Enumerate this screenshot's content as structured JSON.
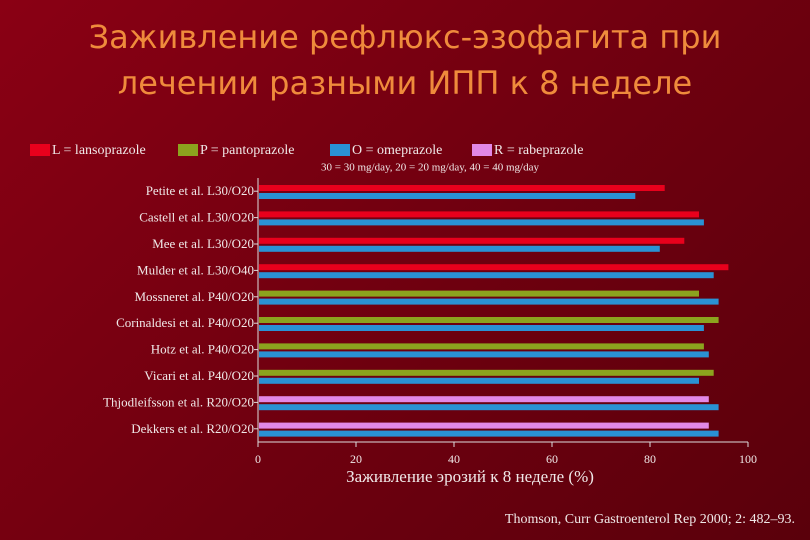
{
  "chart_data": {
    "type": "bar",
    "orientation": "horizontal",
    "title": "Заживление рефлюкс-эзофагита при\nлечении разными ИПП к 8 неделе",
    "subtitle": "30 = 30 mg/day, 20 = 20 mg/day, 40 = 40 mg/day",
    "x_label": "Заживление эрозий к 8 неделе (%)",
    "source": "Thomson, Curr Gastroenterol Rep 2000; 2: 482–93.",
    "categories": [
      "Petite et al. L30/O20",
      "Castell et al. L30/O20",
      "Mee et al. L30/O20",
      "Mulder et al. L30/O40",
      "Mossneret al. P40/O20",
      "Corinaldesi et al. P40/O20",
      "Hotz et al. P40/O20",
      "Vicari et al. P40/O20",
      "Thjodleifsson et al. R20/O20",
      "Dekkers et al. R20/O20"
    ],
    "series": [
      {
        "name": "L = lansoprazole",
        "color": "#e8001c",
        "values": [
          83,
          90,
          87,
          96,
          null,
          null,
          null,
          null,
          null,
          null
        ]
      },
      {
        "name": "P = pantoprazole",
        "color": "#8ca31e",
        "values": [
          null,
          null,
          null,
          null,
          90,
          94,
          91,
          93,
          null,
          null
        ]
      },
      {
        "name": "O = omeprazole",
        "color": "#2a92d4",
        "values": [
          77,
          91,
          82,
          93,
          94,
          91,
          92,
          90,
          94,
          94
        ]
      },
      {
        "name": "R = rabeprazole",
        "color": "#e288e6",
        "values": [
          null,
          null,
          null,
          null,
          null,
          null,
          null,
          null,
          92,
          92
        ]
      }
    ],
    "xlim": [
      0,
      100
    ],
    "xticks": [
      0,
      20,
      40,
      60,
      80,
      100
    ]
  }
}
